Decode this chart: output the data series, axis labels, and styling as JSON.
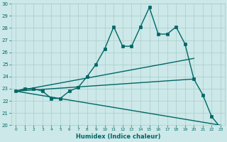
{
  "xlabel": "Humidex (Indice chaleur)",
  "x_values": [
    0,
    1,
    2,
    3,
    4,
    5,
    6,
    7,
    8,
    9,
    10,
    11,
    12,
    13,
    14,
    15,
    16,
    17,
    18,
    19,
    20,
    21,
    22,
    23
  ],
  "main_line": [
    22.8,
    23.0,
    23.0,
    22.8,
    22.2,
    22.2,
    22.8,
    23.1,
    24.0,
    25.0,
    26.3,
    28.1,
    26.5,
    26.5,
    28.1,
    29.7,
    27.5,
    27.5,
    28.1,
    26.7,
    23.8,
    22.5,
    20.7,
    19.8
  ],
  "straight_lines": [
    {
      "x0": 0,
      "y0": 22.8,
      "x1": 20,
      "y1": 25.5
    },
    {
      "x0": 0,
      "y0": 22.8,
      "x1": 20,
      "y1": 23.8
    },
    {
      "x0": 0,
      "y0": 22.8,
      "x1": 23,
      "y1": 20.0
    }
  ],
  "ylim": [
    20,
    30
  ],
  "xlim": [
    -0.5,
    23.5
  ],
  "yticks": [
    20,
    21,
    22,
    23,
    24,
    25,
    26,
    27,
    28,
    29,
    30
  ],
  "xticks": [
    0,
    1,
    2,
    3,
    4,
    5,
    6,
    7,
    8,
    9,
    10,
    11,
    12,
    13,
    14,
    15,
    16,
    17,
    18,
    19,
    20,
    21,
    22,
    23
  ],
  "color": "#006666",
  "bg_color": "#cce8e8",
  "grid_color": "#aacccc",
  "marker_size": 2.5,
  "linewidth": 1.0
}
